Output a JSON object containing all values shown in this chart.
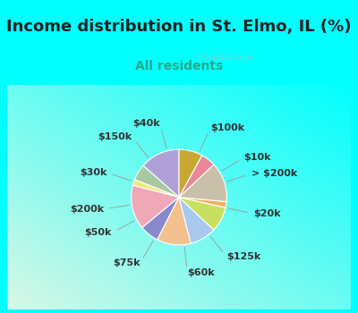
{
  "title": "Income distribution in St. Elmo, IL (%)",
  "subtitle": "All residents",
  "background_outer": "#00FFFF",
  "background_chart_tl": "#d8f0e8",
  "background_chart_br": "#e8f8f2",
  "watermark": "City-Data.com",
  "labels": [
    "$100k",
    "$10k",
    "> $200k",
    "$20k",
    "$125k",
    "$60k",
    "$75k",
    "$50k",
    "$200k",
    "$30k",
    "$150k",
    "$40k"
  ],
  "sizes": [
    13.5,
    5.5,
    2.0,
    15.0,
    6.5,
    11.5,
    9.0,
    8.5,
    2.0,
    13.5,
    5.0,
    8.0
  ],
  "colors": [
    "#b0a0d8",
    "#a8c8a0",
    "#f0e878",
    "#f0a8b8",
    "#8888cc",
    "#f5c090",
    "#a8c8f0",
    "#c8e060",
    "#f0b060",
    "#c8c0a8",
    "#e88898",
    "#c8a830"
  ],
  "startangle": 90,
  "title_fontsize": 13,
  "subtitle_fontsize": 10,
  "label_fontsize": 8,
  "label_color": "#333333"
}
